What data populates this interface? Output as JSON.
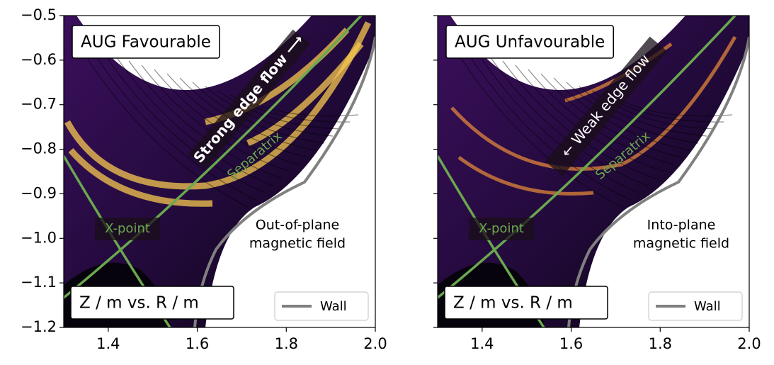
{
  "chart_data": [
    {
      "type": "image",
      "title": "AUG Favourable",
      "axis_label": "Z / m vs. R / m",
      "flow_label": "Strong edge flow ⟶",
      "separatrix_label": "Separatrix",
      "xpoint_label": "X-point",
      "field_label": [
        "Out-of-plane",
        "magnetic field"
      ],
      "legend": {
        "name": "Wall",
        "color": "#808080",
        "corner": "lower right"
      },
      "xlim": [
        1.3,
        2.0
      ],
      "xticks": [
        1.4,
        1.6,
        1.8,
        {
          "value": 2,
          "label": "2.0"
        }
      ],
      "ylim": [
        -1.2,
        -0.5
      ],
      "yticks": [
        {
          "value": -1.2,
          "label": "−1.2"
        },
        {
          "value": -1.1,
          "label": "−1.1"
        },
        {
          "value": -1,
          "label": "−1.0"
        },
        {
          "value": -0.9,
          "label": "−0.9"
        },
        {
          "value": -0.8,
          "label": "−0.8"
        },
        {
          "value": -0.7,
          "label": "−0.7"
        },
        {
          "value": -0.6,
          "label": "−0.6"
        },
        {
          "value": -0.5,
          "label": "−0.5"
        }
      ]
    },
    {
      "type": "image",
      "title": "AUG Unfavourable",
      "axis_label": "Z / m vs. R / m",
      "flow_label": "← Weak edge flow",
      "separatrix_label": "Separatrix",
      "xpoint_label": "X-point",
      "field_label": [
        "Into-plane",
        "magnetic field"
      ],
      "legend": {
        "name": "Wall",
        "color": "#808080",
        "corner": "lower right"
      },
      "xlim": [
        1.3,
        2.0
      ],
      "xticks": [
        1.4,
        1.6,
        1.8,
        {
          "value": 2,
          "label": "2.0"
        }
      ],
      "ylim": [
        -1.2,
        -0.5
      ],
      "yticks": [
        -1.2,
        -1.1,
        -1,
        -0.9,
        -0.8,
        -0.7,
        -0.6,
        -0.5
      ]
    }
  ]
}
